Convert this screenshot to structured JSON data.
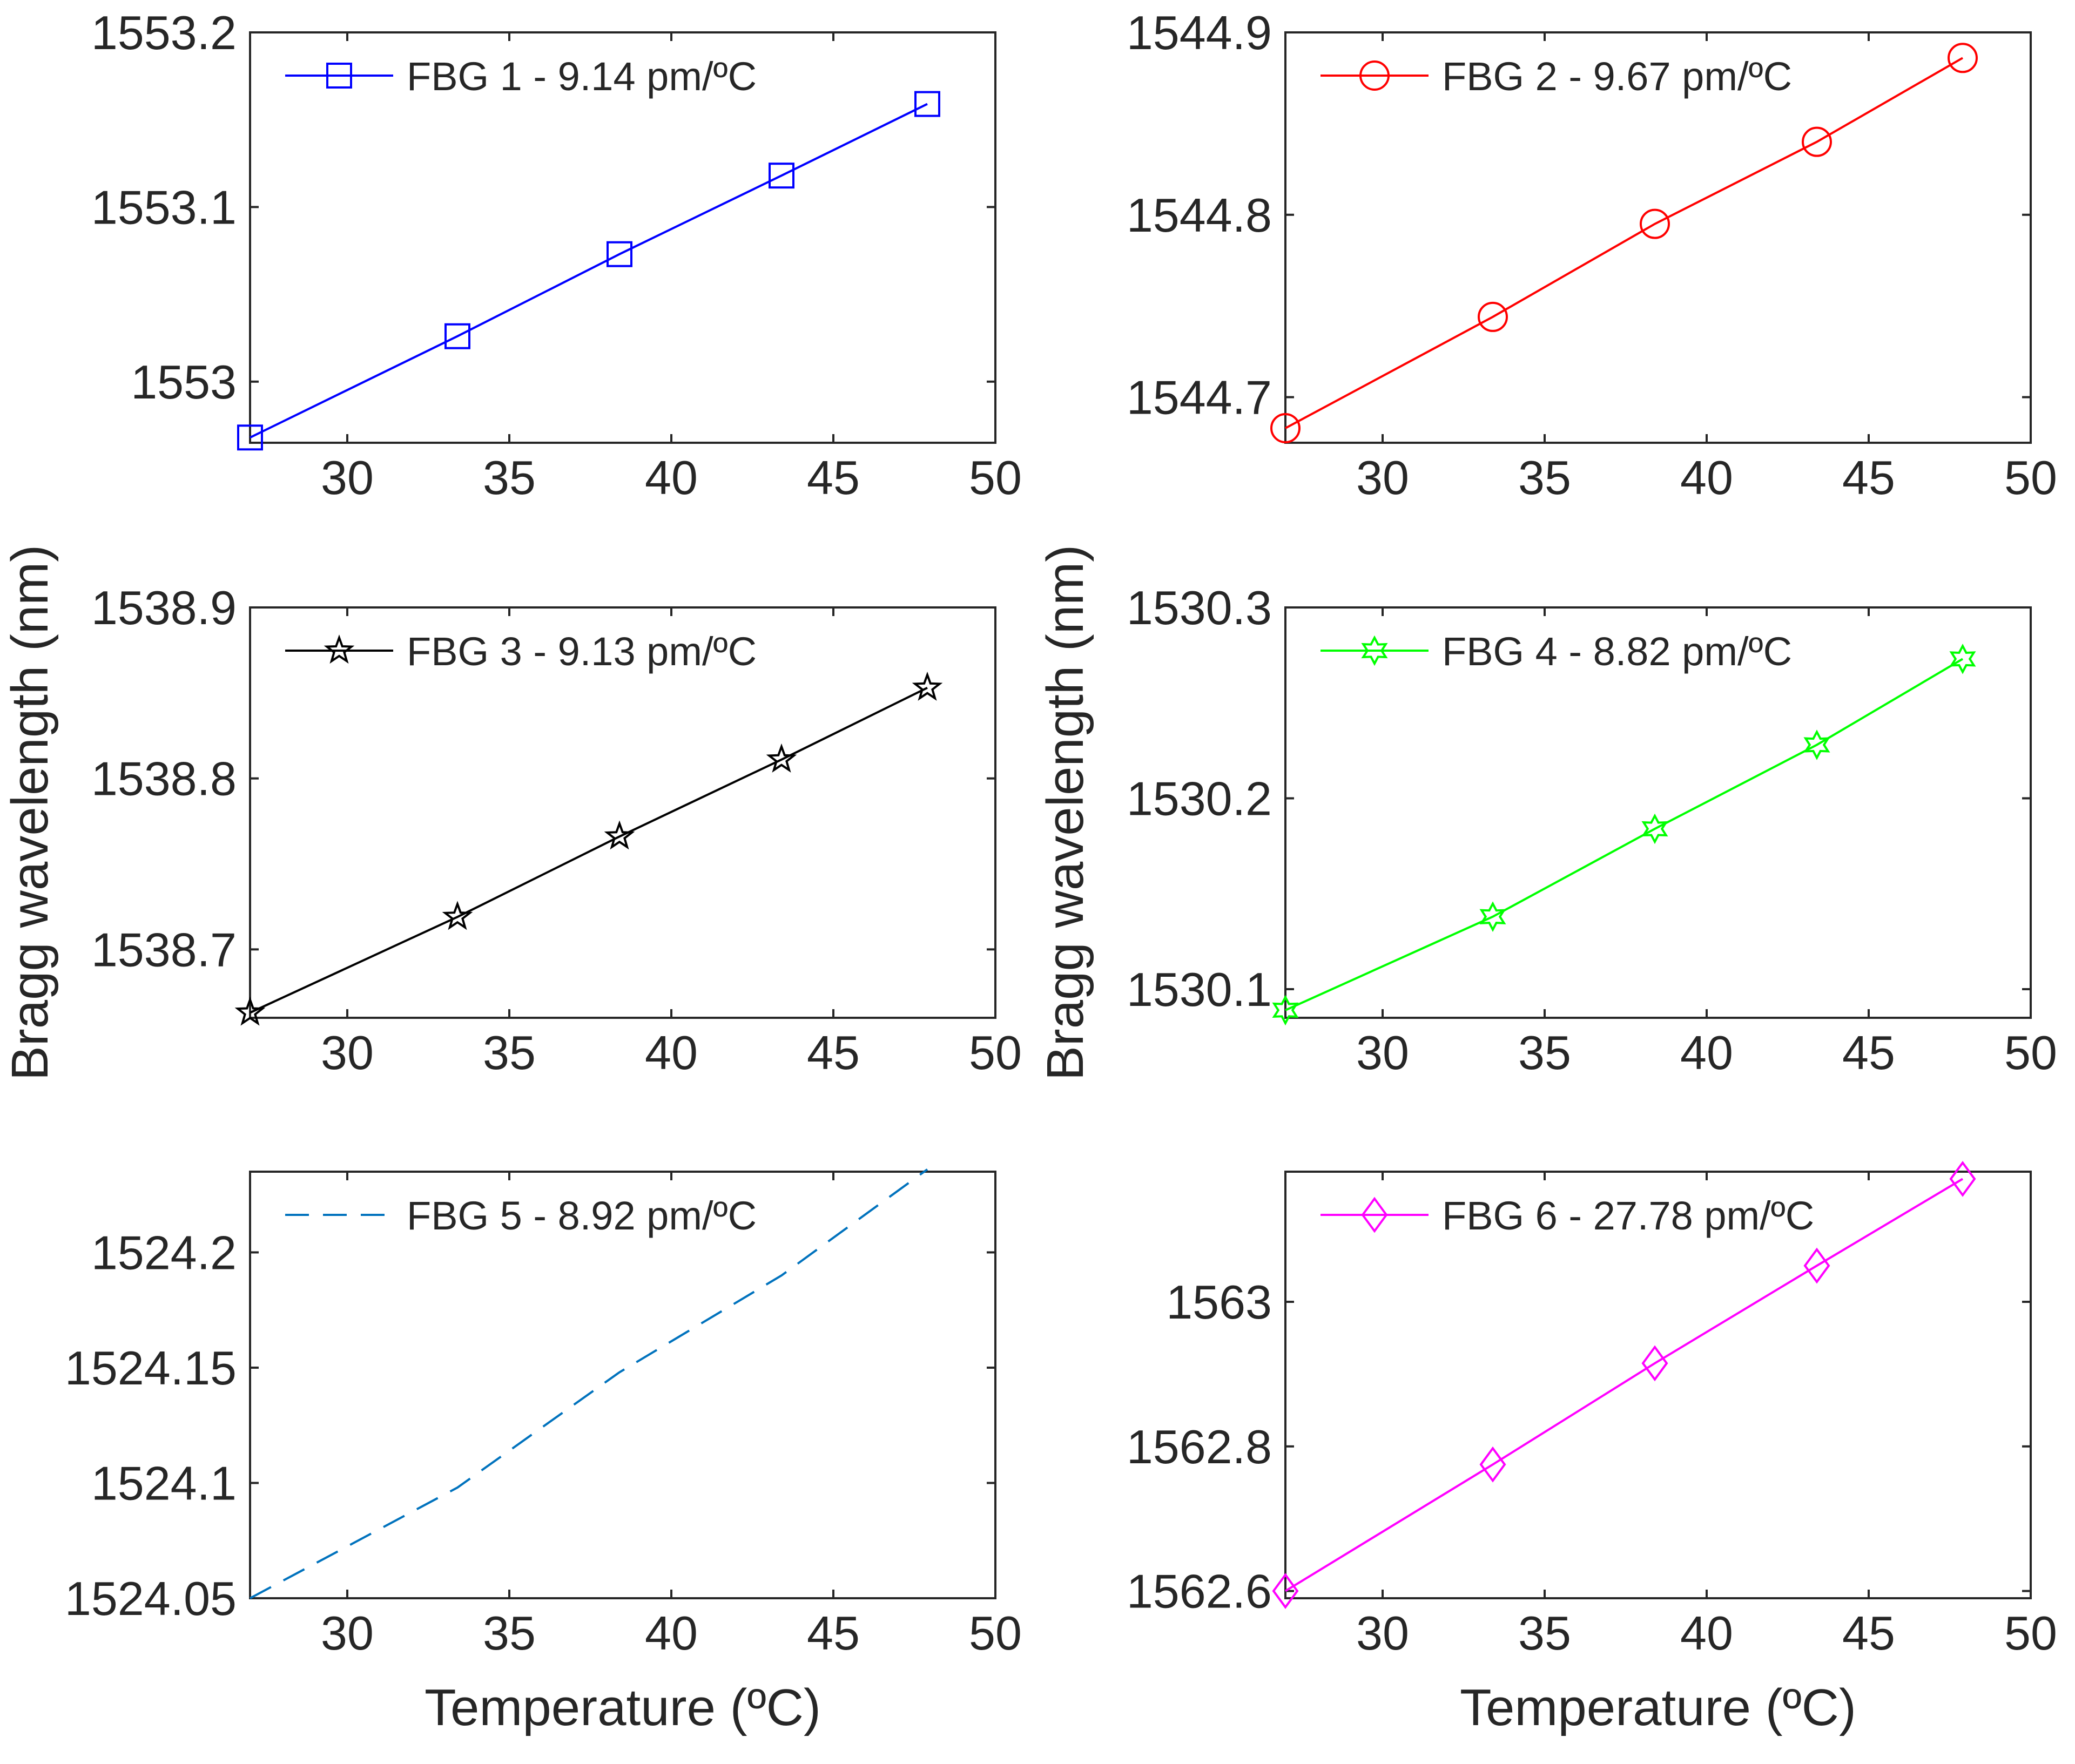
{
  "figure": {
    "ylabel": "Bragg wavelength (nm)",
    "xlabel": "Temperature (ºC)"
  },
  "chart_data": [
    {
      "type": "line",
      "panel": "top-left",
      "x": [
        27,
        33.4,
        38.4,
        43.4,
        47.9
      ],
      "y": [
        1552.968,
        1553.026,
        1553.073,
        1553.118,
        1553.159
      ],
      "series_name": "FBG 1 - 9.14 pm/ºC",
      "color": "#0000ff",
      "marker": "square",
      "line_style": "solid",
      "xlim": [
        27,
        50
      ],
      "ylim": [
        1552.965,
        1553.2
      ],
      "xticks": [
        30,
        35,
        40,
        45,
        50
      ],
      "yticks": [
        1553,
        1553.1,
        1553.2
      ],
      "ytick_labels": [
        "1553",
        "1553.1",
        "1553.2"
      ],
      "legend_position": "top-left",
      "xlabel": "",
      "ylabel": ""
    },
    {
      "type": "line",
      "panel": "top-right",
      "x": [
        27,
        33.4,
        38.4,
        43.4,
        47.9
      ],
      "y": [
        1544.683,
        1544.744,
        1544.795,
        1544.84,
        1544.886
      ],
      "series_name": "FBG 2 - 9.67 pm/ºC",
      "color": "#ff0000",
      "marker": "circle",
      "line_style": "solid",
      "xlim": [
        27,
        50
      ],
      "ylim": [
        1544.675,
        1544.9
      ],
      "xticks": [
        30,
        35,
        40,
        45,
        50
      ],
      "yticks": [
        1544.7,
        1544.8,
        1544.9
      ],
      "ytick_labels": [
        "1544.7",
        "1544.8",
        "1544.9"
      ],
      "legend_position": "top-left",
      "xlabel": "",
      "ylabel": ""
    },
    {
      "type": "line",
      "panel": "middle-left",
      "x": [
        27,
        33.4,
        38.4,
        43.4,
        47.9
      ],
      "y": [
        1538.663,
        1538.719,
        1538.766,
        1538.811,
        1538.853
      ],
      "series_name": "FBG 3 - 9.13 pm/ºC",
      "color": "#000000",
      "marker": "star",
      "line_style": "solid",
      "xlim": [
        27,
        50
      ],
      "ylim": [
        1538.66,
        1538.9
      ],
      "xticks": [
        30,
        35,
        40,
        45,
        50
      ],
      "yticks": [
        1538.7,
        1538.8,
        1538.9
      ],
      "ytick_labels": [
        "1538.7",
        "1538.8",
        "1538.9"
      ],
      "legend_position": "top-left",
      "xlabel": "",
      "ylabel": "Bragg wavelength (nm)"
    },
    {
      "type": "line",
      "panel": "middle-right",
      "x": [
        27,
        33.4,
        38.4,
        43.4,
        47.9
      ],
      "y": [
        1530.089,
        1530.138,
        1530.184,
        1530.228,
        1530.273
      ],
      "series_name": "FBG 4 - 8.82 pm/ºC",
      "color": "#00ff00",
      "marker": "hexagram",
      "line_style": "solid",
      "xlim": [
        27,
        50
      ],
      "ylim": [
        1530.085,
        1530.3
      ],
      "xticks": [
        30,
        35,
        40,
        45,
        50
      ],
      "yticks": [
        1530.1,
        1530.2,
        1530.3
      ],
      "ytick_labels": [
        "1530.1",
        "1530.2",
        "1530.3"
      ],
      "legend_position": "top-left",
      "xlabel": "",
      "ylabel": "Bragg wavelength (nm)"
    },
    {
      "type": "line",
      "panel": "bottom-left",
      "x": [
        27,
        33.4,
        38.4,
        43.4,
        47.9
      ],
      "y": [
        1524.05,
        1524.098,
        1524.148,
        1524.19,
        1524.236
      ],
      "series_name": "FBG 5 - 8.92 pm/ºC",
      "color": "#0072bd",
      "marker": "none",
      "line_style": "dashed",
      "xlim": [
        27,
        50
      ],
      "ylim": [
        1524.05,
        1524.235
      ],
      "xticks": [
        30,
        35,
        40,
        45,
        50
      ],
      "yticks": [
        1524.05,
        1524.1,
        1524.15,
        1524.2
      ],
      "ytick_labels": [
        "1524.05",
        "1524.1",
        "1524.15",
        "1524.2"
      ],
      "legend_position": "top-left",
      "xlabel": "Temperature (ºC)",
      "ylabel": ""
    },
    {
      "type": "line",
      "panel": "bottom-right",
      "x": [
        27,
        33.4,
        38.4,
        43.4,
        47.9
      ],
      "y": [
        1562.6,
        1562.775,
        1562.915,
        1563.05,
        1563.17
      ],
      "series_name": "FBG 6 - 27.78 pm/ºC",
      "color": "#ff00ff",
      "marker": "diamond",
      "line_style": "solid",
      "xlim": [
        27,
        50
      ],
      "ylim": [
        1562.59,
        1563.18
      ],
      "xticks": [
        30,
        35,
        40,
        45,
        50
      ],
      "yticks": [
        1562.6,
        1562.8,
        1563
      ],
      "ytick_labels": [
        "1562.6",
        "1562.8",
        "1563"
      ],
      "legend_position": "top-left",
      "xlabel": "Temperature (ºC)",
      "ylabel": ""
    }
  ]
}
